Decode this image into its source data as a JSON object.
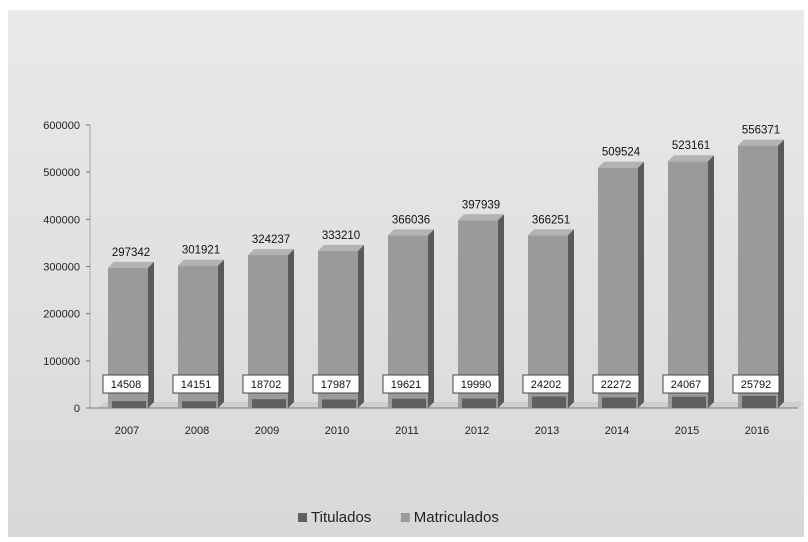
{
  "chart_data": {
    "type": "bar",
    "title": "",
    "xlabel": "",
    "ylabel": "",
    "categories": [
      "2007",
      "2008",
      "2009",
      "2010",
      "2011",
      "2012",
      "2013",
      "2014",
      "2015",
      "2016"
    ],
    "series": [
      {
        "name": "Titulados",
        "values": [
          14508,
          14151,
          18702,
          17987,
          19621,
          19990,
          24202,
          22272,
          24067,
          25792
        ],
        "color": "#5f5f5f"
      },
      {
        "name": "Matriculados",
        "values": [
          297342,
          301921,
          324237,
          333210,
          366036,
          397939,
          366251,
          509524,
          523161,
          556371
        ],
        "color": "#9a9a9a"
      }
    ],
    "y_ticks": [
      0,
      100000,
      200000,
      300000,
      400000,
      500000,
      600000
    ],
    "ylim": [
      0,
      600000
    ],
    "grid": false,
    "legend": "bottom"
  }
}
